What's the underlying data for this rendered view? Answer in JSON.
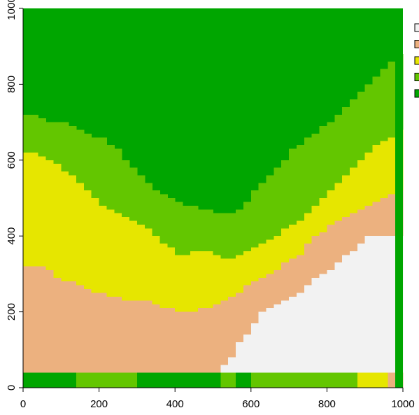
{
  "chart_data": {
    "type": "heatmap",
    "title": "",
    "xlabel": "",
    "ylabel": "",
    "xlim": [
      0,
      1000
    ],
    "ylim": [
      0,
      1000
    ],
    "x_ticks": [
      "0",
      "200",
      "400",
      "600",
      "800",
      "1000"
    ],
    "y_ticks": [
      "0",
      "200",
      "400",
      "600",
      "800",
      "1000"
    ],
    "legend": {
      "placement": "top-right",
      "colors": [
        "#f2f2f2",
        "#ecb17f",
        "#e6e600",
        "#63c600",
        "#00a600"
      ],
      "labels": [
        "",
        "",
        "",
        "",
        ""
      ]
    },
    "grid": false,
    "color_scale": [
      "#f2f2f2",
      "#ecb17f",
      "#e6e600",
      "#63c600",
      "#00a600"
    ],
    "bands": {
      "x": [
        0,
        20,
        40,
        60,
        80,
        100,
        120,
        140,
        160,
        180,
        200,
        220,
        240,
        260,
        280,
        300,
        320,
        340,
        360,
        380,
        400,
        420,
        440,
        460,
        480,
        500,
        520,
        540,
        560,
        580,
        600,
        620,
        640,
        660,
        680,
        700,
        720,
        740,
        760,
        780,
        800,
        820,
        840,
        860,
        880,
        900,
        920,
        940,
        960,
        980,
        1000
      ],
      "white_top": [
        null,
        null,
        null,
        null,
        null,
        null,
        null,
        null,
        null,
        null,
        null,
        null,
        null,
        null,
        null,
        null,
        null,
        null,
        null,
        null,
        null,
        null,
        null,
        null,
        null,
        40,
        60,
        80,
        120,
        140,
        170,
        200,
        210,
        220,
        230,
        240,
        250,
        270,
        290,
        300,
        310,
        330,
        350,
        360,
        380,
        400,
        400,
        400,
        400,
        400,
        null
      ],
      "tan_top": [
        320,
        320,
        320,
        310,
        290,
        280,
        280,
        270,
        260,
        250,
        250,
        240,
        240,
        230,
        230,
        230,
        230,
        220,
        210,
        210,
        200,
        200,
        200,
        210,
        210,
        220,
        230,
        240,
        250,
        270,
        280,
        290,
        300,
        310,
        330,
        340,
        350,
        380,
        400,
        410,
        430,
        440,
        450,
        460,
        470,
        480,
        490,
        500,
        510,
        520,
        null
      ],
      "yellow_top": [
        620,
        620,
        610,
        600,
        590,
        570,
        560,
        540,
        520,
        500,
        480,
        470,
        460,
        450,
        440,
        430,
        420,
        400,
        380,
        370,
        350,
        350,
        360,
        360,
        360,
        350,
        340,
        340,
        350,
        360,
        370,
        380,
        390,
        400,
        420,
        430,
        440,
        460,
        480,
        500,
        520,
        540,
        560,
        580,
        600,
        620,
        640,
        650,
        660,
        680,
        null
      ],
      "lightgreen_top": [
        720,
        720,
        710,
        700,
        700,
        700,
        690,
        680,
        670,
        660,
        660,
        640,
        630,
        600,
        580,
        560,
        540,
        520,
        510,
        500,
        490,
        480,
        480,
        470,
        470,
        460,
        460,
        460,
        470,
        490,
        520,
        540,
        560,
        580,
        600,
        630,
        640,
        660,
        670,
        690,
        700,
        720,
        740,
        760,
        780,
        800,
        820,
        840,
        860,
        880,
        null
      ],
      "bottom_strip": [
        0,
        40
      ],
      "bottom_strip_colors": [
        "#00a600",
        "#00a600",
        "#00a600",
        "#00a600",
        "#00a600",
        "#00a600",
        "#00a600",
        "#63c600",
        "#63c600",
        "#63c600",
        "#63c600",
        "#63c600",
        "#63c600",
        "#63c600",
        "#63c600",
        "#00a600",
        "#00a600",
        "#00a600",
        "#00a600",
        "#00a600",
        "#00a600",
        "#00a600",
        "#00a600",
        "#00a600",
        "#00a600",
        "#00a600",
        "#63c600",
        "#63c600",
        "#00a600",
        "#00a600",
        "#63c600",
        "#63c600",
        "#63c600",
        "#63c600",
        "#63c600",
        "#63c600",
        "#63c600",
        "#63c600",
        "#63c600",
        "#63c600",
        "#63c600",
        "#63c600",
        "#63c600",
        "#63c600",
        "#e6e600",
        "#e6e600",
        "#e6e600",
        "#e6e600",
        "#ecb17f",
        "#ecb17f",
        "#00a600"
      ],
      "right_strip": [
        980,
        1000
      ],
      "right_strip_color": "#00a600"
    }
  }
}
